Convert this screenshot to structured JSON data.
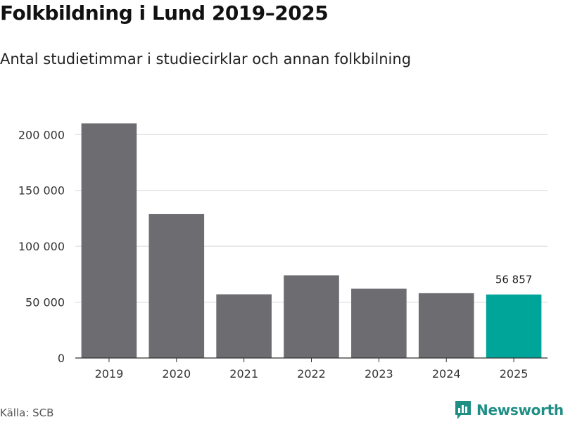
{
  "title": "Folkbildning i Lund 2019–2025",
  "subtitle": "Antal studietimmar i studiecirklar och annan folkbilning",
  "source": "Källa: SCB",
  "brand": "Newsworthy",
  "colors": {
    "bar": "#6d6c70",
    "highlight": "#00a59a",
    "grid": "#d8d8d8",
    "axis": "#333333",
    "brand": "#1f8f86"
  },
  "chart_data": {
    "type": "bar",
    "title": "Folkbildning i Lund 2019–2025",
    "subtitle": "Antal studietimmar i studiecirklar och annan folkbilning",
    "xlabel": "",
    "ylabel": "",
    "categories": [
      "2019",
      "2020",
      "2021",
      "2022",
      "2023",
      "2024",
      "2025"
    ],
    "values": [
      210000,
      129000,
      57000,
      74000,
      62000,
      58000,
      56857
    ],
    "highlight_index": 6,
    "data_labels": [
      {
        "index": 6,
        "text": "56 857"
      }
    ],
    "yticks": [
      0,
      50000,
      100000,
      150000,
      200000
    ],
    "ytick_labels": [
      "0",
      "50 000",
      "100 000",
      "150 000",
      "200 000"
    ],
    "ylim": [
      0,
      215000
    ],
    "grid": true,
    "legend": "none"
  }
}
